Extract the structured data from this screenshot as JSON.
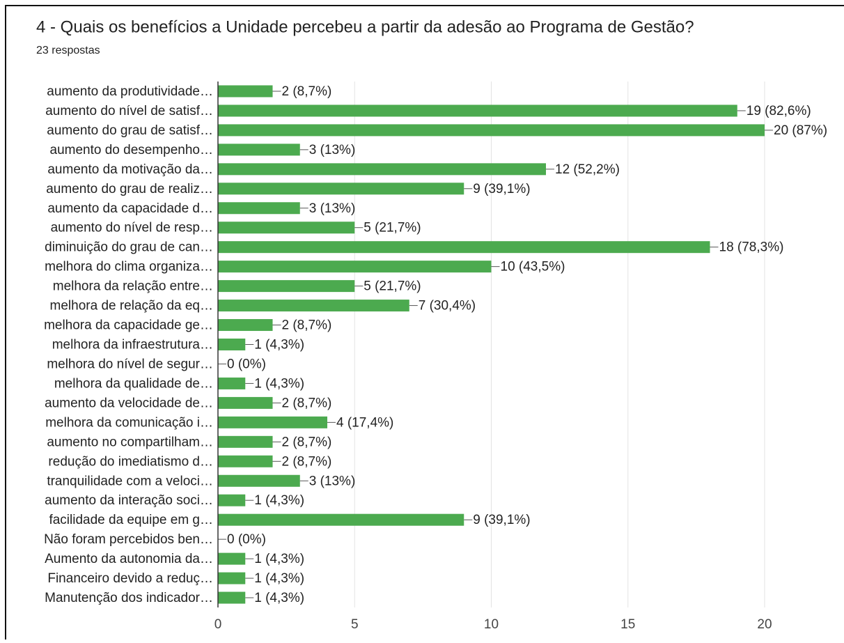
{
  "chart_data": {
    "type": "barh",
    "title": "4 - Quais os benefícios a Unidade percebeu a partir da adesão ao Programa de Gestão?",
    "subtitle": "23 respostas",
    "categories": [
      "aumento da produtividade…",
      "aumento do nível de satisf…",
      "aumento do grau de satisf…",
      "aumento do desempenho…",
      "aumento da motivação da…",
      "aumento do grau de realiz…",
      "aumento da capacidade d…",
      "aumento do nível de resp…",
      "diminuição do grau de can…",
      "melhora do clima organiza…",
      "melhora da relação entre…",
      "melhora de relação da eq…",
      "melhora da capacidade ge…",
      "melhora da infraestrutura…",
      "melhora do nível de segur…",
      "melhora da qualidade de…",
      "aumento da velocidade de…",
      "melhora da comunicação i…",
      "aumento no compartilham…",
      "redução do imediatismo d…",
      "tranquilidade com a veloci…",
      "aumento da interação soci…",
      "facilidade da equipe em g…",
      "Não foram percebidos ben…",
      "Aumento da autonomia da…",
      "Financeiro devido a reduç…",
      "Manutenção dos indicador…"
    ],
    "values": [
      2,
      19,
      20,
      3,
      12,
      9,
      3,
      5,
      18,
      10,
      5,
      7,
      2,
      1,
      0,
      1,
      2,
      4,
      2,
      2,
      3,
      1,
      9,
      0,
      1,
      1,
      1
    ],
    "value_labels": [
      "2 (8,7%)",
      "19 (82,6%)",
      "20 (87%)",
      "3 (13%)",
      "12 (52,2%)",
      "9 (39,1%)",
      "3 (13%)",
      "5 (21,7%)",
      "18 (78,3%)",
      "10 (43,5%)",
      "5 (21,7%)",
      "7 (30,4%)",
      "2 (8,7%)",
      "1 (4,3%)",
      "0 (0%)",
      "1 (4,3%)",
      "2 (8,7%)",
      "4 (17,4%)",
      "2 (8,7%)",
      "2 (8,7%)",
      "3 (13%)",
      "1 (4,3%)",
      "9 (39,1%)",
      "0 (0%)",
      "1 (4,3%)",
      "1 (4,3%)",
      "1 (4,3%)"
    ],
    "color": "#4caa4f",
    "xlim": [
      0,
      20
    ],
    "xticks": [
      0,
      5,
      10,
      15,
      20
    ],
    "grid": true
  }
}
